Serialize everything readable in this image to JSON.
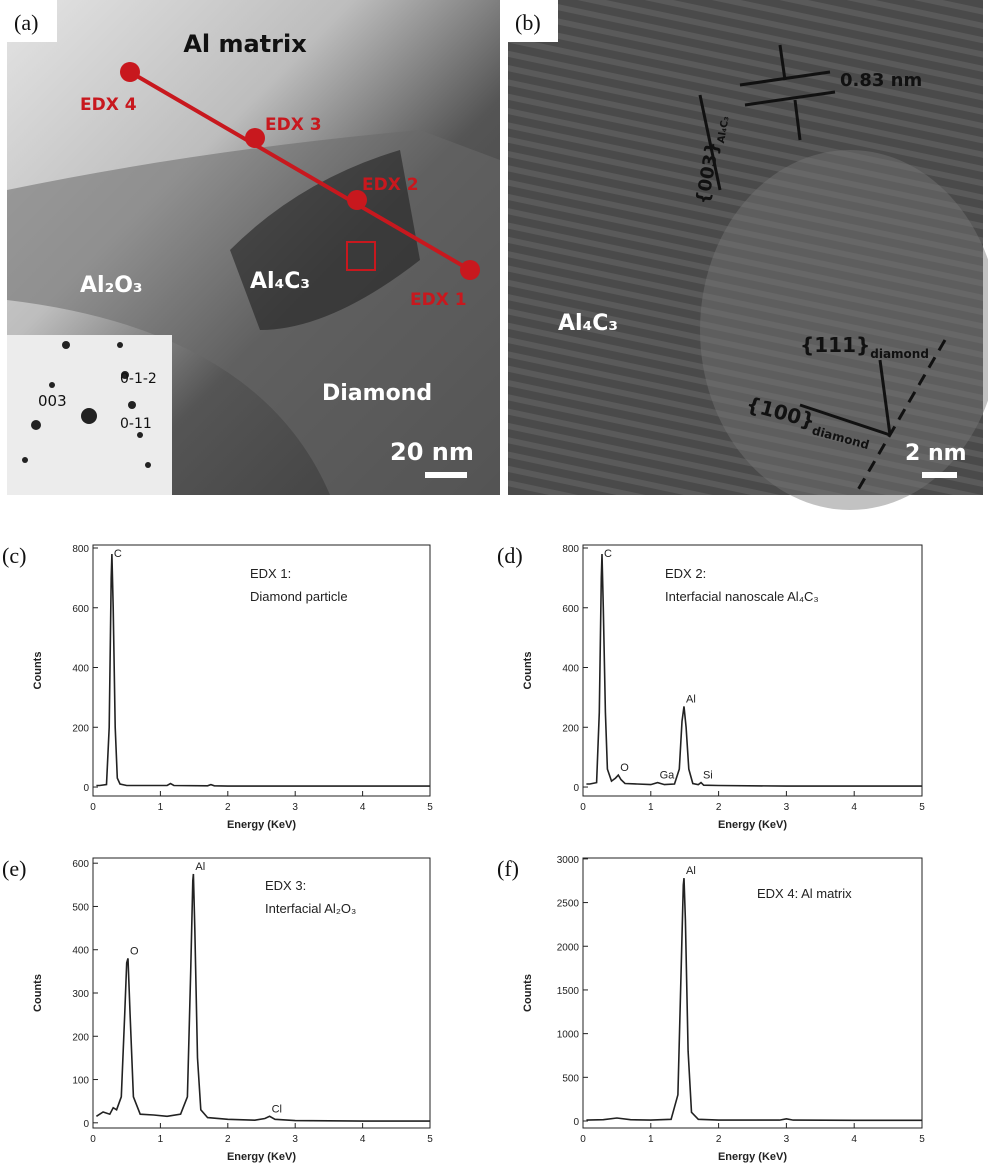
{
  "image_panels": [
    {
      "letter": "(a)",
      "title": "Al matrix",
      "points": [
        "EDX 4",
        "EDX 3",
        "EDX 2",
        "EDX 1"
      ],
      "phases": [
        "Al₂O₃",
        "Al₄C₃",
        "Diamond"
      ],
      "inset_spots": [
        "003",
        "0-1-2",
        "0-11"
      ],
      "scale_bar": "20 nm"
    },
    {
      "letter": "(b)",
      "spacing": "0.83 nm",
      "phase": "Al₄C₃",
      "planes": [
        {
          "index": "{003}",
          "sub": "Al₄C₃"
        },
        {
          "index": "{111}",
          "sub": "diamond"
        },
        {
          "index": "{100}",
          "sub": "diamond"
        }
      ],
      "scale_bar": "2 nm"
    }
  ],
  "chart_data": [
    {
      "type": "line",
      "label": "(c)",
      "x_label": "Energy (KeV)",
      "y_label": "Counts",
      "note": [
        "EDX 1:",
        "Diamond particle"
      ],
      "color": "#222222",
      "x": [
        0.05,
        0.1,
        0.2,
        0.24,
        0.27,
        0.28,
        0.3,
        0.33,
        0.36,
        0.4,
        0.5,
        0.8,
        1.1,
        1.15,
        1.2,
        1.7,
        1.75,
        1.8,
        2,
        3,
        4,
        5
      ],
      "values": [
        5,
        5,
        8,
        200,
        700,
        780,
        600,
        200,
        30,
        10,
        5,
        5,
        5,
        12,
        5,
        4,
        8,
        4,
        3,
        3,
        3,
        3
      ],
      "annotations": [
        {
          "text": "C",
          "x": 0.28
        }
      ],
      "xlim": [
        0,
        5
      ],
      "xticks": [
        0,
        1,
        2,
        3,
        4,
        5
      ],
      "ylim": [
        -30,
        810
      ],
      "yticks": [
        0,
        200,
        400,
        600,
        800
      ]
    },
    {
      "type": "line",
      "label": "(d)",
      "x_label": "Energy (KeV)",
      "y_label": "Counts",
      "note": [
        "EDX 2:",
        "Interfacial nanoscale Al₄C₃"
      ],
      "color": "#222222",
      "x": [
        0.05,
        0.1,
        0.2,
        0.24,
        0.27,
        0.28,
        0.3,
        0.33,
        0.36,
        0.42,
        0.48,
        0.52,
        0.56,
        0.62,
        0.8,
        1.0,
        1.1,
        1.2,
        1.35,
        1.42,
        1.46,
        1.49,
        1.52,
        1.56,
        1.62,
        1.7,
        1.74,
        1.78,
        2,
        3,
        4,
        5
      ],
      "values": [
        10,
        10,
        15,
        250,
        700,
        780,
        600,
        250,
        60,
        20,
        30,
        40,
        25,
        12,
        10,
        8,
        15,
        8,
        10,
        60,
        220,
        270,
        200,
        60,
        12,
        8,
        15,
        6,
        5,
        3,
        3,
        3
      ],
      "annotations": [
        {
          "text": "C",
          "x": 0.28
        },
        {
          "text": "O",
          "x": 0.52
        },
        {
          "text": "Ga",
          "x": 1.1
        },
        {
          "text": "Al",
          "x": 1.49
        },
        {
          "text": "Si",
          "x": 1.74
        }
      ],
      "xlim": [
        0,
        5
      ],
      "xticks": [
        0,
        1,
        2,
        3,
        4,
        5
      ],
      "ylim": [
        -30,
        810
      ],
      "yticks": [
        0,
        200,
        400,
        600,
        800
      ]
    },
    {
      "type": "line",
      "label": "(e)",
      "x_label": "Energy (KeV)",
      "y_label": "Counts",
      "note": [
        "EDX 3:",
        "Interfacial Al₂O₃"
      ],
      "color": "#222222",
      "x": [
        0.05,
        0.15,
        0.25,
        0.3,
        0.35,
        0.42,
        0.47,
        0.5,
        0.52,
        0.55,
        0.6,
        0.7,
        0.9,
        1.1,
        1.3,
        1.4,
        1.45,
        1.48,
        1.49,
        1.51,
        1.55,
        1.6,
        1.7,
        2,
        2.4,
        2.55,
        2.62,
        2.7,
        3,
        4,
        5
      ],
      "values": [
        15,
        25,
        20,
        35,
        30,
        60,
        250,
        370,
        380,
        250,
        60,
        20,
        18,
        15,
        20,
        60,
        350,
        560,
        575,
        450,
        150,
        30,
        12,
        8,
        6,
        10,
        15,
        8,
        5,
        4,
        4
      ],
      "annotations": [
        {
          "text": "O",
          "x": 0.52
        },
        {
          "text": "Al",
          "x": 1.49
        },
        {
          "text": "Cl",
          "x": 2.62
        }
      ],
      "xlim": [
        0,
        5
      ],
      "xticks": [
        0,
        1,
        2,
        3,
        4,
        5
      ],
      "ylim": [
        -12,
        612
      ],
      "yticks": [
        0,
        100,
        200,
        300,
        400,
        500,
        600
      ]
    },
    {
      "type": "line",
      "label": "(f)",
      "x_label": "Energy (KeV)",
      "y_label": "Counts",
      "note": [
        "EDX 4: Al matrix"
      ],
      "color": "#222222",
      "x": [
        0.05,
        0.3,
        0.5,
        0.7,
        1.0,
        1.3,
        1.4,
        1.45,
        1.48,
        1.49,
        1.51,
        1.55,
        1.6,
        1.7,
        2,
        2.9,
        3.0,
        3.1,
        4,
        5
      ],
      "values": [
        10,
        15,
        35,
        15,
        10,
        20,
        300,
        1800,
        2700,
        2780,
        2300,
        800,
        100,
        20,
        10,
        10,
        25,
        10,
        8,
        8
      ],
      "annotations": [
        {
          "text": "Al",
          "x": 1.49
        }
      ],
      "xlim": [
        0,
        5
      ],
      "xticks": [
        0,
        1,
        2,
        3,
        4,
        5
      ],
      "ylim": [
        -80,
        3010
      ],
      "yticks": [
        0,
        500,
        1000,
        1500,
        2000,
        2500,
        3000
      ]
    }
  ]
}
